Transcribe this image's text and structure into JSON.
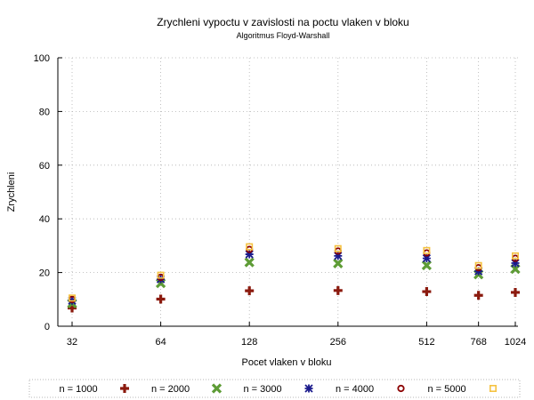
{
  "chart_data": {
    "type": "scatter",
    "title": "Zrychleni vypoctu v zavislosti na poctu vlaken v bloku",
    "subtitle": "Algoritmus Floyd-Warshall",
    "xlabel": "Pocet vlaken v bloku",
    "ylabel": "Zrychleni",
    "x_scale": "log2",
    "categories": [
      "32",
      "64",
      "128",
      "256",
      "512",
      "768",
      "1024"
    ],
    "x": [
      32,
      64,
      128,
      256,
      512,
      768,
      1024
    ],
    "ylim": [
      0,
      100
    ],
    "yticks": [
      0,
      20,
      40,
      60,
      80,
      100
    ],
    "grid": true,
    "legend_position": "bottom",
    "series": [
      {
        "name": "n = 1000",
        "marker": "plus",
        "color": "#8b1a0e",
        "values": [
          6.8,
          10.1,
          13.2,
          13.3,
          12.9,
          11.5,
          12.6
        ]
      },
      {
        "name": "n = 2000",
        "marker": "cross",
        "color": "#5e9c36",
        "values": [
          8.5,
          16.0,
          23.8,
          23.4,
          22.7,
          19.3,
          21.3
        ]
      },
      {
        "name": "n = 3000",
        "marker": "star",
        "color": "#1a1a8c",
        "values": [
          9.5,
          17.5,
          26.8,
          26.2,
          25.3,
          20.5,
          23.5
        ]
      },
      {
        "name": "n = 4000",
        "marker": "circle",
        "color": "#8b0000",
        "values": [
          10.0,
          18.2,
          28.6,
          28.0,
          27.3,
          21.8,
          25.3
        ]
      },
      {
        "name": "n = 5000",
        "marker": "square",
        "color": "#f5c242",
        "values": [
          10.5,
          19.0,
          29.6,
          28.9,
          28.2,
          22.6,
          26.2
        ]
      }
    ]
  }
}
